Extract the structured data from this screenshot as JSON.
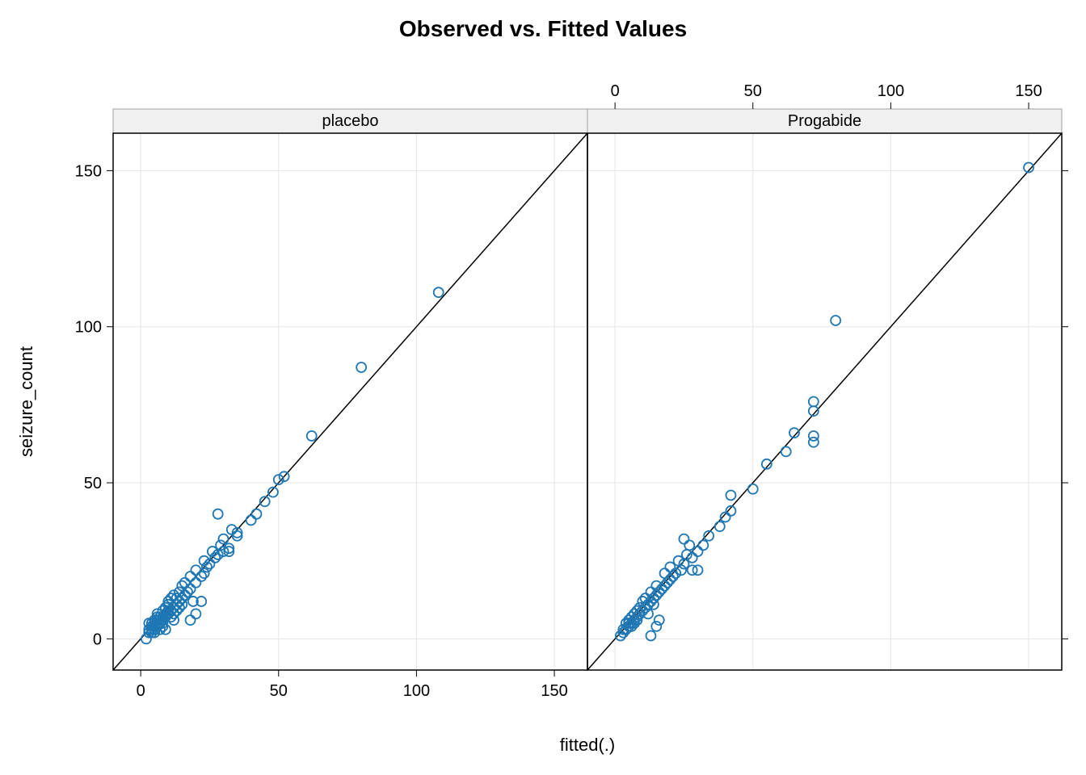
{
  "chart": {
    "type": "scatter",
    "title": "Observed vs. Fitted Values",
    "title_fontsize": 28,
    "xlabel": "fitted(.)",
    "ylabel": "seizure_count",
    "label_fontsize": 22,
    "tick_fontsize": 20,
    "background_color": "#ffffff",
    "grid_color": "#e5e5e5",
    "border_color": "#000000",
    "strip_bg": "#f0f0f0",
    "strip_border": "#a0a0a0",
    "point_color": "#1f77b4",
    "point_radius": 6,
    "point_stroke_width": 1.8,
    "refline_color": "#000000",
    "refline_width": 1.5,
    "xlim": [
      -10,
      162
    ],
    "ylim": [
      -10,
      162
    ],
    "xticks": [
      0,
      50,
      100,
      150
    ],
    "yticks": [
      0,
      50,
      100,
      150
    ],
    "panels": [
      {
        "label": "placebo",
        "ticks_position": "bottom-left",
        "points": [
          [
            2,
            0
          ],
          [
            3,
            2
          ],
          [
            3,
            3
          ],
          [
            3,
            5
          ],
          [
            4,
            3
          ],
          [
            4,
            4
          ],
          [
            4,
            2
          ],
          [
            4,
            5
          ],
          [
            5,
            4
          ],
          [
            5,
            3
          ],
          [
            5,
            6
          ],
          [
            5,
            5
          ],
          [
            5,
            2
          ],
          [
            6,
            5
          ],
          [
            6,
            7
          ],
          [
            6,
            4
          ],
          [
            6,
            6
          ],
          [
            6,
            8
          ],
          [
            7,
            3
          ],
          [
            7,
            6
          ],
          [
            7,
            5
          ],
          [
            7,
            7
          ],
          [
            8,
            4
          ],
          [
            8,
            6
          ],
          [
            8,
            7
          ],
          [
            8,
            9
          ],
          [
            8,
            5
          ],
          [
            9,
            3
          ],
          [
            9,
            7
          ],
          [
            9,
            8
          ],
          [
            9,
            10
          ],
          [
            10,
            8
          ],
          [
            10,
            9
          ],
          [
            10,
            11
          ],
          [
            10,
            12
          ],
          [
            11,
            7
          ],
          [
            11,
            9
          ],
          [
            11,
            13
          ],
          [
            12,
            8
          ],
          [
            12,
            10
          ],
          [
            12,
            6
          ],
          [
            12,
            14
          ],
          [
            13,
            9
          ],
          [
            13,
            11
          ],
          [
            13,
            13
          ],
          [
            14,
            10
          ],
          [
            14,
            12
          ],
          [
            14,
            15
          ],
          [
            15,
            11
          ],
          [
            15,
            13
          ],
          [
            15,
            17
          ],
          [
            16,
            14
          ],
          [
            16,
            18
          ],
          [
            17,
            15
          ],
          [
            18,
            16
          ],
          [
            18,
            20
          ],
          [
            19,
            12
          ],
          [
            20,
            18
          ],
          [
            20,
            22
          ],
          [
            22,
            20
          ],
          [
            23,
            25
          ],
          [
            24,
            23
          ],
          [
            25,
            24
          ],
          [
            26,
            28
          ],
          [
            27,
            26
          ],
          [
            28,
            27
          ],
          [
            29,
            30
          ],
          [
            30,
            28
          ],
          [
            30,
            32
          ],
          [
            32,
            29
          ],
          [
            33,
            35
          ],
          [
            35,
            34
          ],
          [
            40,
            38
          ],
          [
            42,
            40
          ],
          [
            45,
            44
          ],
          [
            48,
            47
          ],
          [
            18,
            6
          ],
          [
            20,
            8
          ],
          [
            22,
            12
          ],
          [
            23,
            21
          ],
          [
            28,
            40
          ],
          [
            32,
            28
          ],
          [
            35,
            33
          ],
          [
            50,
            51
          ],
          [
            52,
            52
          ],
          [
            62,
            65
          ],
          [
            80,
            87
          ],
          [
            108,
            111
          ]
        ]
      },
      {
        "label": "Progabide",
        "ticks_position": "top-right",
        "points": [
          [
            2,
            1
          ],
          [
            3,
            2
          ],
          [
            3,
            3
          ],
          [
            4,
            3
          ],
          [
            4,
            5
          ],
          [
            5,
            4
          ],
          [
            5,
            6
          ],
          [
            5,
            5
          ],
          [
            6,
            5
          ],
          [
            6,
            7
          ],
          [
            6,
            4
          ],
          [
            7,
            6
          ],
          [
            7,
            8
          ],
          [
            7,
            5
          ],
          [
            8,
            6
          ],
          [
            8,
            9
          ],
          [
            8,
            7
          ],
          [
            9,
            8
          ],
          [
            9,
            10
          ],
          [
            10,
            9
          ],
          [
            10,
            12
          ],
          [
            11,
            10
          ],
          [
            11,
            13
          ],
          [
            12,
            11
          ],
          [
            12,
            8
          ],
          [
            13,
            12
          ],
          [
            13,
            15
          ],
          [
            14,
            13
          ],
          [
            14,
            11
          ],
          [
            15,
            14
          ],
          [
            15,
            17
          ],
          [
            16,
            15
          ],
          [
            17,
            16
          ],
          [
            18,
            17
          ],
          [
            18,
            21
          ],
          [
            19,
            18
          ],
          [
            20,
            19
          ],
          [
            20,
            23
          ],
          [
            21,
            20
          ],
          [
            22,
            21
          ],
          [
            13,
            1
          ],
          [
            15,
            4
          ],
          [
            16,
            6
          ],
          [
            23,
            25
          ],
          [
            24,
            22
          ],
          [
            25,
            24
          ],
          [
            26,
            27
          ],
          [
            27,
            30
          ],
          [
            28,
            26
          ],
          [
            30,
            28
          ],
          [
            25,
            32
          ],
          [
            28,
            22
          ],
          [
            30,
            22
          ],
          [
            32,
            30
          ],
          [
            34,
            33
          ],
          [
            38,
            36
          ],
          [
            40,
            39
          ],
          [
            42,
            41
          ],
          [
            42,
            46
          ],
          [
            50,
            48
          ],
          [
            55,
            56
          ],
          [
            62,
            60
          ],
          [
            65,
            66
          ],
          [
            72,
            73
          ],
          [
            72,
            76
          ],
          [
            72,
            63
          ],
          [
            72,
            65
          ],
          [
            80,
            102
          ],
          [
            150,
            151
          ]
        ]
      }
    ]
  }
}
